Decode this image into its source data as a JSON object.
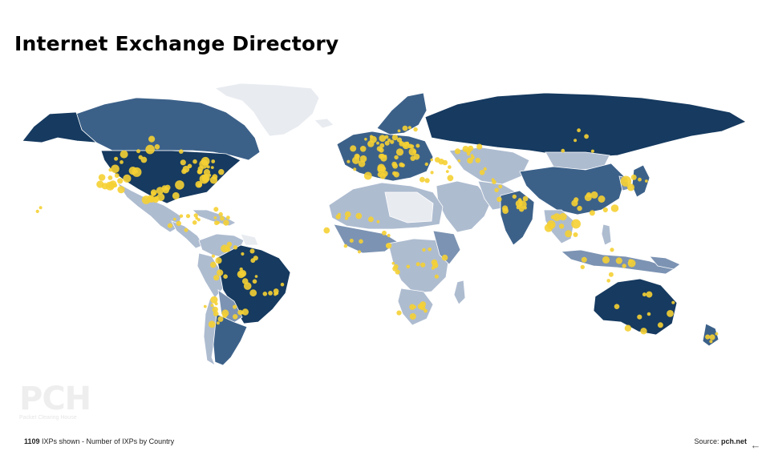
{
  "title": "Internet Exchange Directory",
  "footer": {
    "count": "1109",
    "count_suffix": " IXPs shown - Number of IXPs by Country",
    "source_label": "Source: ",
    "source_value": "pch.net"
  },
  "watermark": {
    "letters": "PCH",
    "subtitle": "Packet Clearing House"
  },
  "legend_colors": {
    "tier_high": "#163a60",
    "tier_mid_high": "#3c6189",
    "tier_mid": "#7c93b3",
    "tier_low": "#aebcd0",
    "tier_none": "#e8ebf0",
    "ixp_marker": "#f5d033"
  },
  "icons": {
    "back": "arrow-left-icon"
  }
}
